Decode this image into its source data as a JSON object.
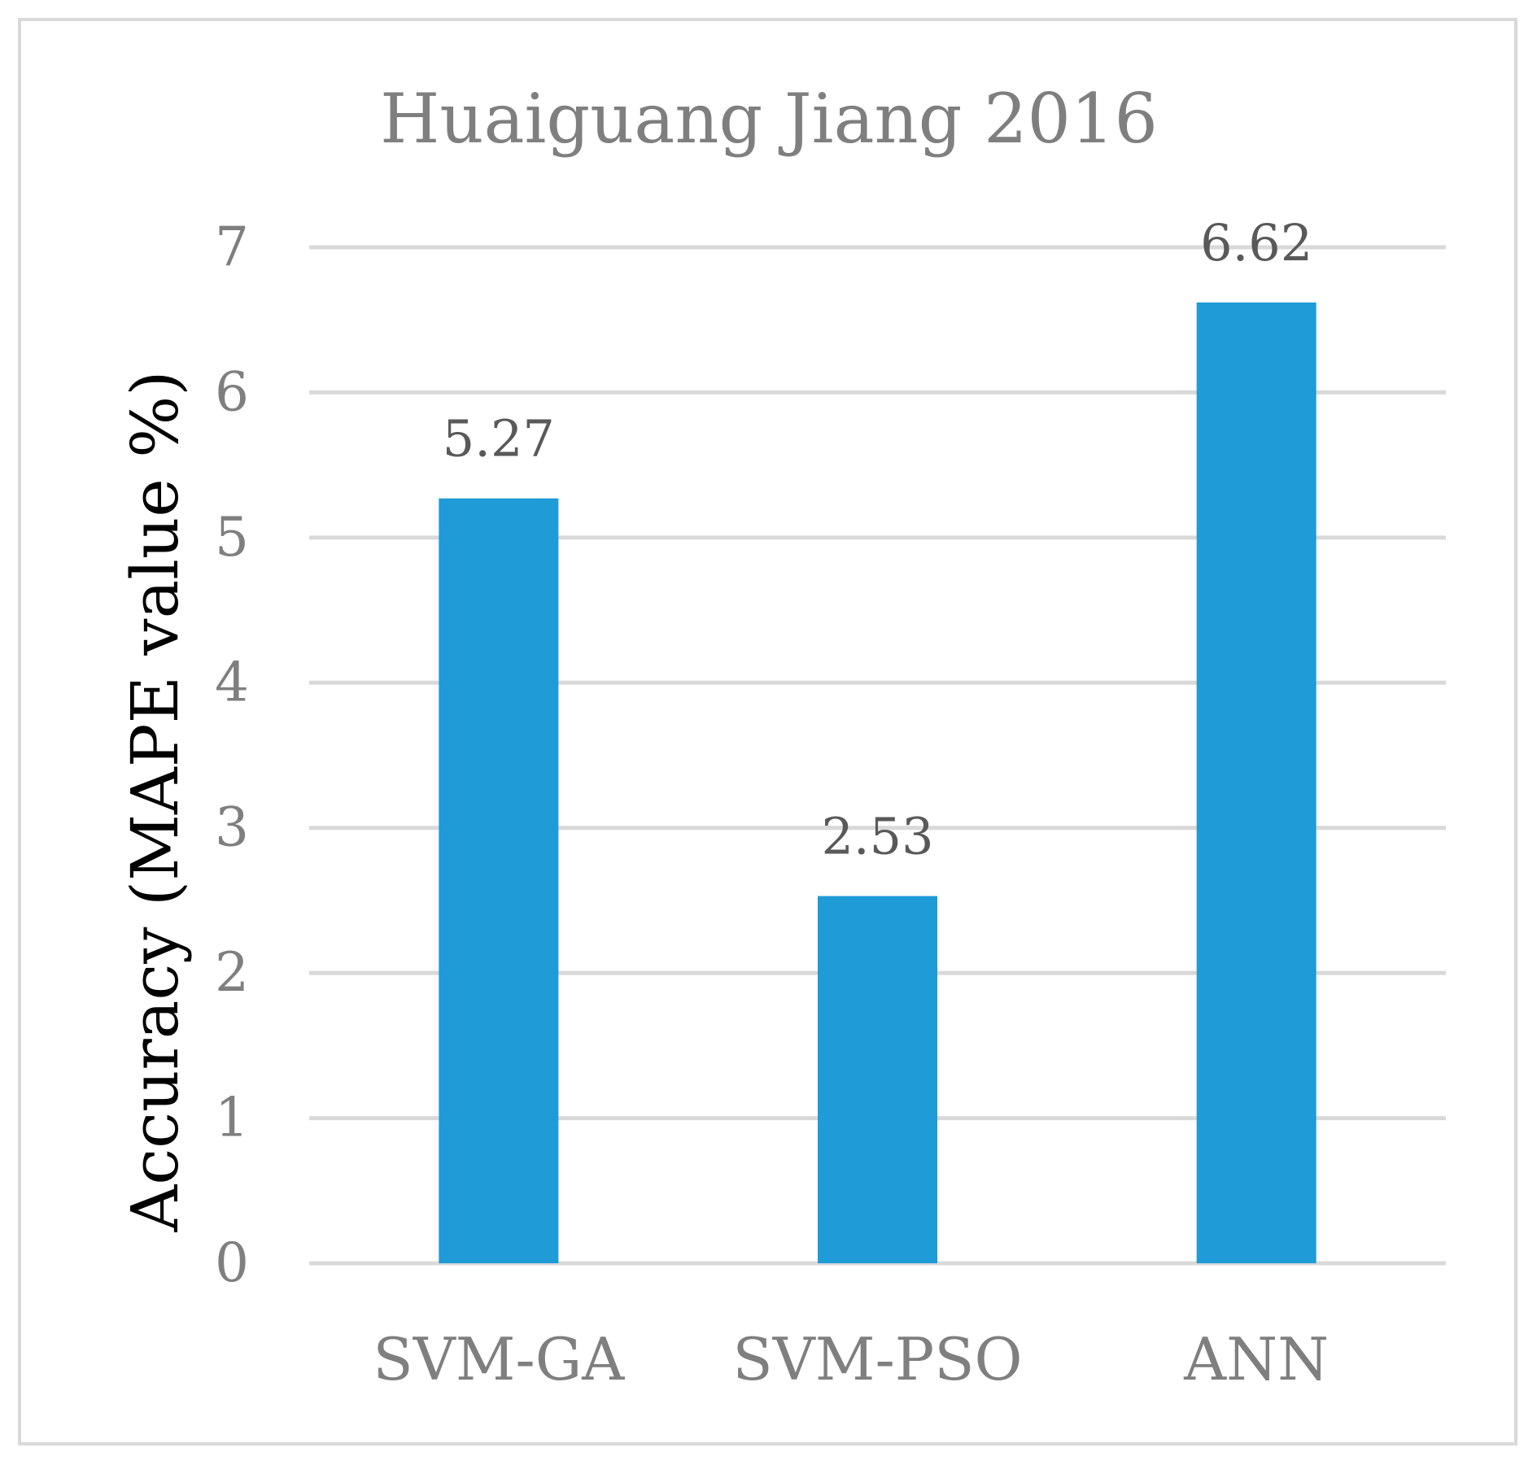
{
  "chart_data": {
    "type": "bar",
    "title": "Huaiguang Jiang 2016",
    "xlabel": "",
    "ylabel": "Accuracy (MAPE value %)",
    "categories": [
      "SVM-GA",
      "SVM-PSO",
      "ANN"
    ],
    "values": [
      5.27,
      2.53,
      6.62
    ],
    "data_labels": [
      "5.27",
      "2.53",
      "6.62"
    ],
    "ylim": [
      0,
      7
    ],
    "yticks": [
      0,
      1,
      2,
      3,
      4,
      5,
      6,
      7
    ],
    "grid": true,
    "legend": "none",
    "bar_color": "#1f9bd7",
    "grid_color": "#d9d9d9"
  }
}
